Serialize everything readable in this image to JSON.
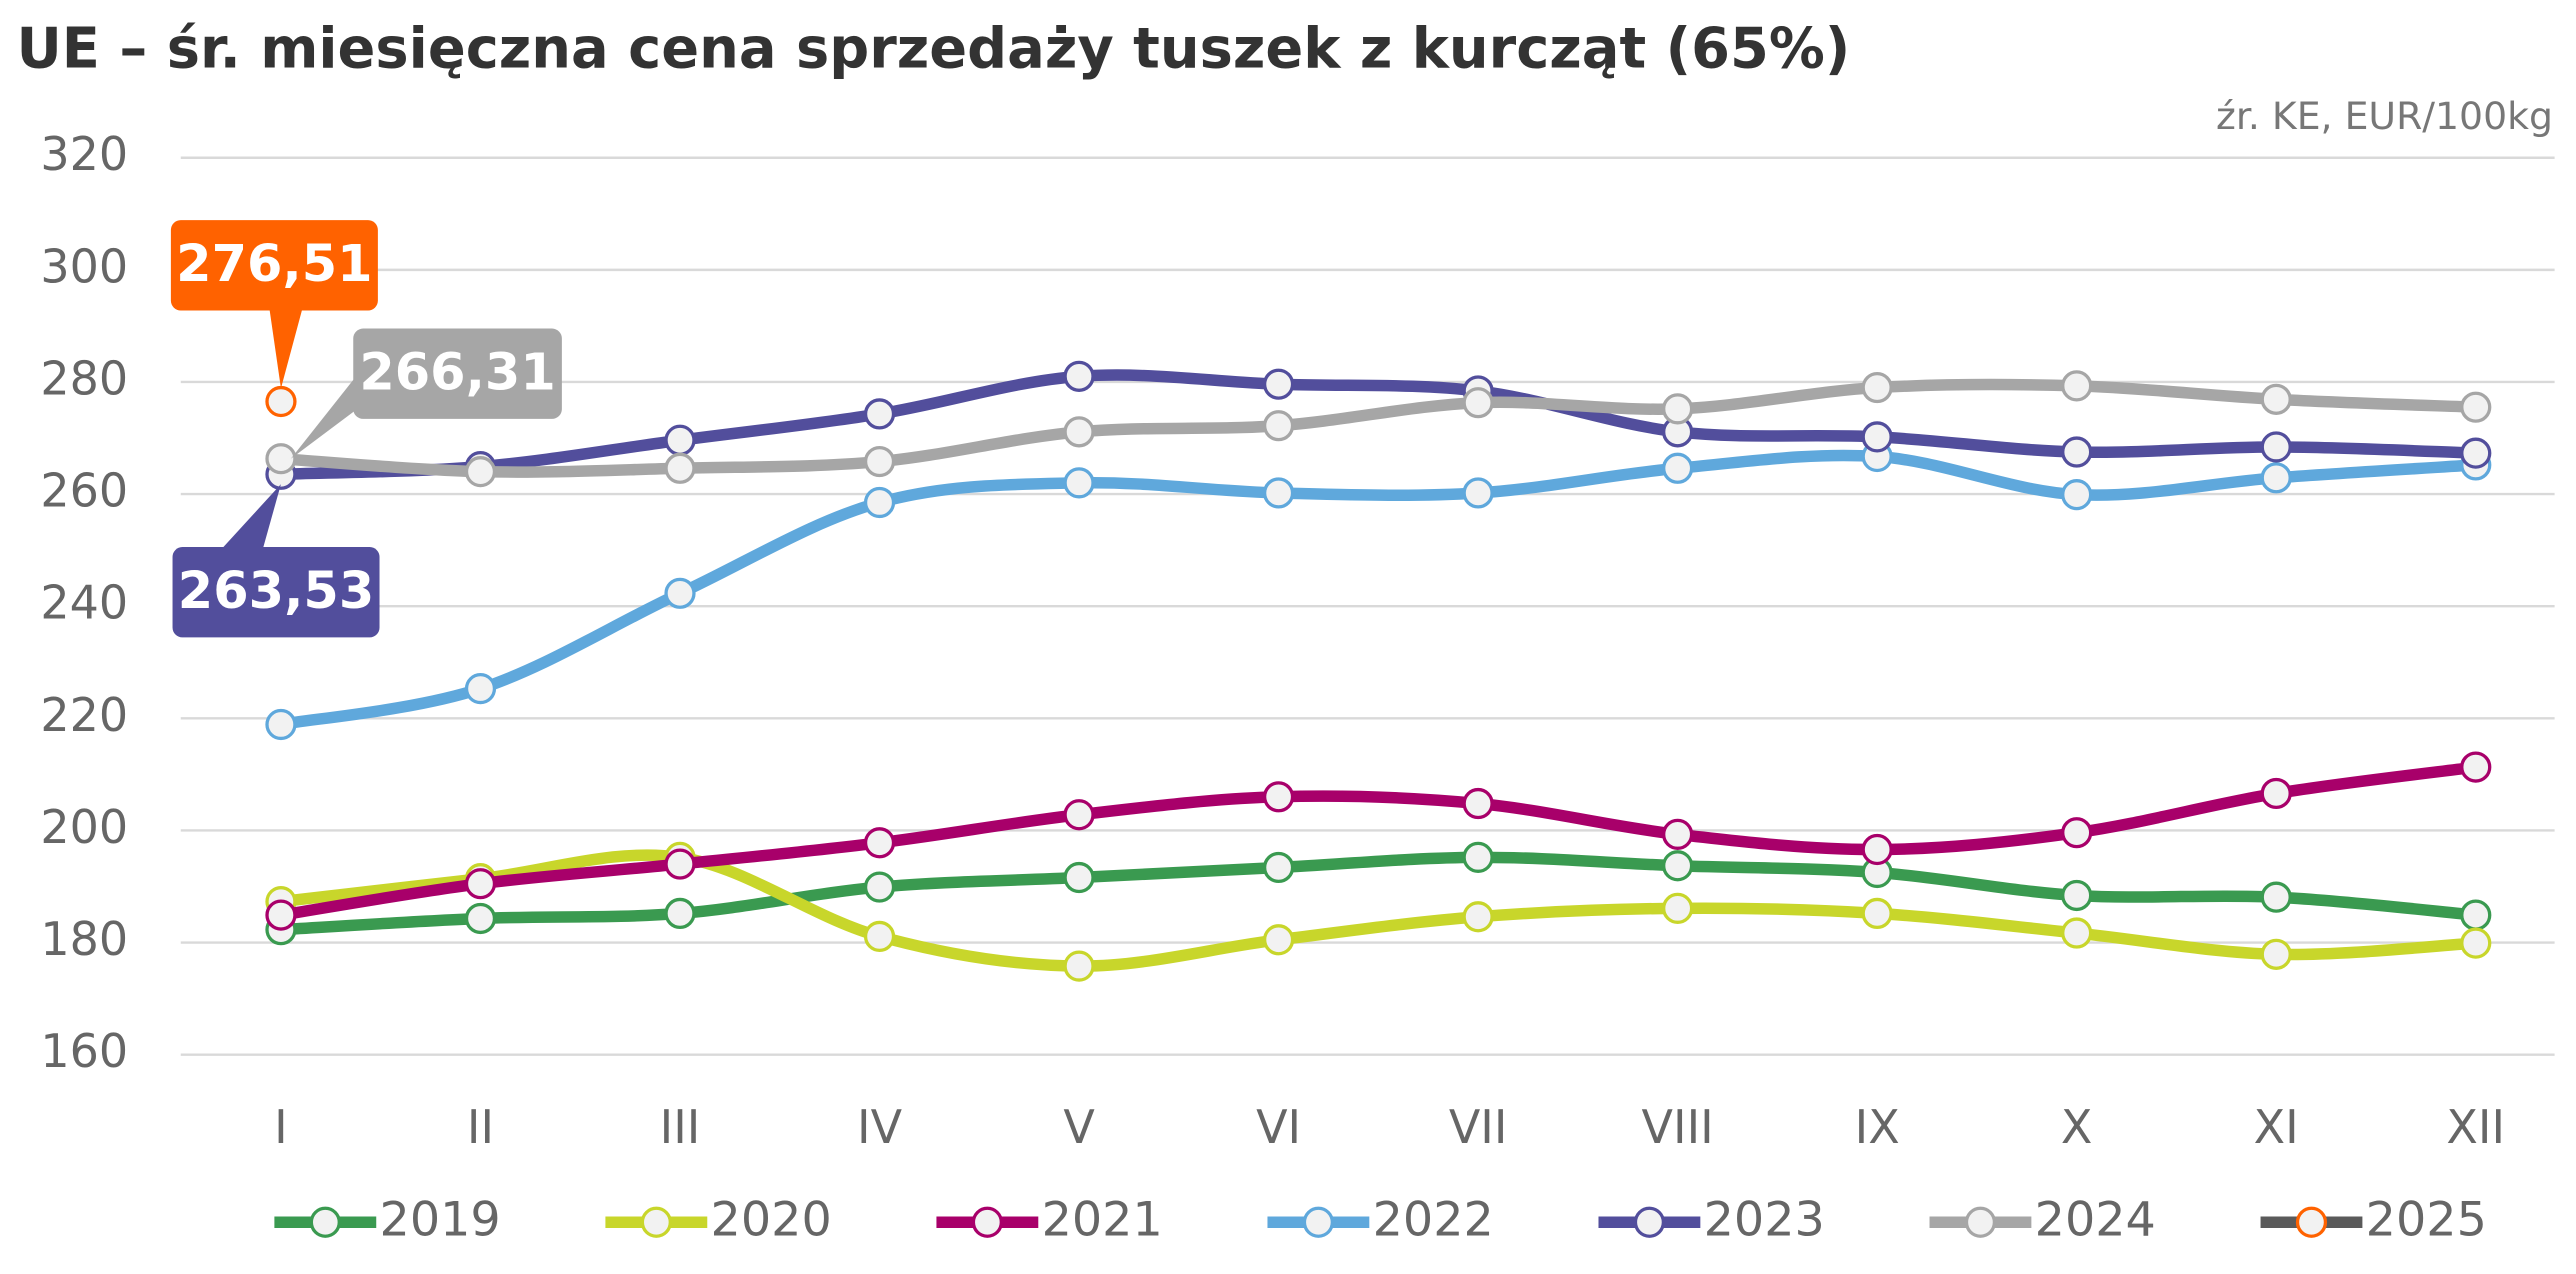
{
  "chart_data": {
    "type": "line",
    "title": "UE – śr. miesięczna cena sprzedaży tuszek z kurcząt (65%)",
    "subtitle": "źr. KE, EUR/100kg",
    "categories": [
      "I",
      "II",
      "III",
      "IV",
      "V",
      "VI",
      "VII",
      "VIII",
      "IX",
      "X",
      "XI",
      "XII"
    ],
    "ylim": [
      160,
      320
    ],
    "yticks": [
      160,
      180,
      200,
      220,
      240,
      260,
      280,
      300,
      320
    ],
    "grid": true,
    "legend": "bottom",
    "series": [
      {
        "name": "2019",
        "color": "#3a9a50",
        "values": [
          182.3,
          184.3,
          185.2,
          189.9,
          191.6,
          193.4,
          195.2,
          193.7,
          192.5,
          188.4,
          188.1,
          184.9
        ]
      },
      {
        "name": "2020",
        "color": "#c8d62b",
        "values": [
          187.3,
          191.4,
          195.2,
          181.1,
          175.8,
          180.5,
          184.6,
          186.1,
          185.2,
          181.7,
          177.9,
          179.9
        ]
      },
      {
        "name": "2021",
        "color": "#a8006a",
        "values": [
          184.9,
          190.5,
          194.0,
          197.8,
          202.8,
          206.0,
          204.8,
          199.3,
          196.6,
          199.6,
          206.6,
          211.3
        ]
      },
      {
        "name": "2022",
        "color": "#5fa8dc",
        "values": [
          218.9,
          225.3,
          242.3,
          258.5,
          262.0,
          260.2,
          260.2,
          264.6,
          266.7,
          259.9,
          262.9,
          265.2
        ]
      },
      {
        "name": "2023",
        "color": "#524e9c",
        "values": [
          263.53,
          264.9,
          269.6,
          274.3,
          281.0,
          279.6,
          278.4,
          271.1,
          270.2,
          267.5,
          268.4,
          267.3
        ],
        "value_labels": [
          "263,53",
          null,
          null,
          null,
          null,
          null,
          null,
          null,
          null,
          null,
          null,
          null
        ]
      },
      {
        "name": "2024",
        "color": "#a6a6a6",
        "values": [
          266.31,
          264.0,
          264.6,
          265.8,
          271.1,
          272.2,
          276.3,
          275.2,
          279.0,
          279.3,
          276.9,
          275.5
        ],
        "value_labels": [
          "266,31",
          null,
          null,
          null,
          null,
          null,
          null,
          null,
          null,
          null,
          null,
          null
        ]
      },
      {
        "name": "2025",
        "color": "#5a5a5a",
        "marker_color": "#ff6200",
        "values": [
          276.51,
          null,
          null,
          null,
          null,
          null,
          null,
          null,
          null,
          null,
          null,
          null
        ],
        "value_labels": [
          "276,51",
          null,
          null,
          null,
          null,
          null,
          null,
          null,
          null,
          null,
          null,
          null
        ]
      }
    ]
  }
}
